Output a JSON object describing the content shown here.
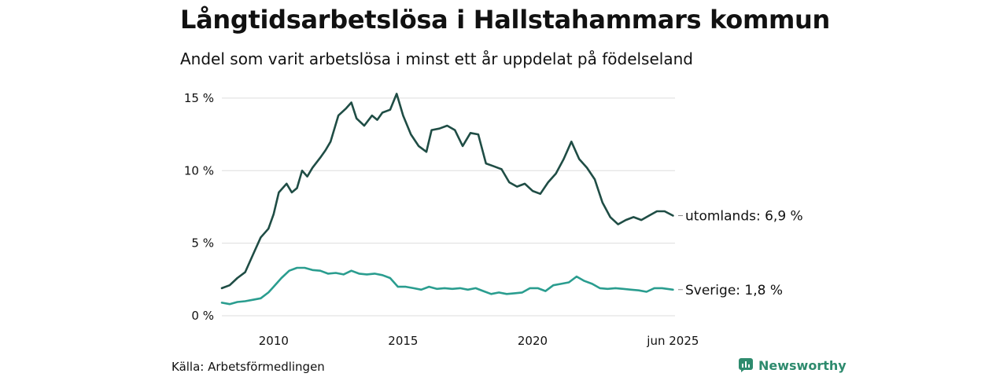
{
  "title": "Långtidsarbetslösa i Hallstahammars kommun",
  "subtitle": "Andel som varit arbetslösa i minst ett år uppdelat på födelseland",
  "source": "Källa: Arbetsförmedlingen",
  "brand": "Newsworthy",
  "colors": {
    "utomlands": "#1f4d45",
    "sverige": "#2a9d8f",
    "grid": "#dddddd",
    "text": "#111111",
    "brand": "#2e8b6e"
  },
  "chart_data": {
    "type": "line",
    "xlim": [
      2008.0,
      2025.5
    ],
    "ylim": [
      0,
      15.7
    ],
    "y_ticks": [
      0,
      5,
      10,
      15
    ],
    "y_tick_labels": [
      "0 %",
      "5 %",
      "10 %",
      "15 %"
    ],
    "x_ticks": [
      2010,
      2015,
      2020,
      2025.42
    ],
    "x_tick_labels": [
      "2010",
      "2015",
      "2020",
      "jun 2025"
    ],
    "grid": true,
    "series": [
      {
        "name": "utomlands",
        "end_label": "utomlands: 6,9 %",
        "color": "#1f4d45",
        "points": [
          [
            2008.0,
            1.9
          ],
          [
            2008.3,
            2.1
          ],
          [
            2008.6,
            2.6
          ],
          [
            2008.9,
            3.0
          ],
          [
            2009.2,
            4.2
          ],
          [
            2009.5,
            5.4
          ],
          [
            2009.8,
            6.0
          ],
          [
            2010.0,
            7.0
          ],
          [
            2010.2,
            8.5
          ],
          [
            2010.5,
            9.1
          ],
          [
            2010.7,
            8.5
          ],
          [
            2010.9,
            8.8
          ],
          [
            2011.1,
            10.0
          ],
          [
            2011.3,
            9.6
          ],
          [
            2011.5,
            10.2
          ],
          [
            2011.8,
            10.9
          ],
          [
            2012.0,
            11.4
          ],
          [
            2012.2,
            12.0
          ],
          [
            2012.5,
            13.8
          ],
          [
            2012.8,
            14.3
          ],
          [
            2013.0,
            14.7
          ],
          [
            2013.2,
            13.6
          ],
          [
            2013.5,
            13.1
          ],
          [
            2013.8,
            13.8
          ],
          [
            2014.0,
            13.5
          ],
          [
            2014.2,
            14.0
          ],
          [
            2014.5,
            14.2
          ],
          [
            2014.75,
            15.3
          ],
          [
            2015.0,
            13.8
          ],
          [
            2015.3,
            12.5
          ],
          [
            2015.6,
            11.7
          ],
          [
            2015.9,
            11.3
          ],
          [
            2016.1,
            12.8
          ],
          [
            2016.4,
            12.9
          ],
          [
            2016.7,
            13.1
          ],
          [
            2017.0,
            12.8
          ],
          [
            2017.3,
            11.7
          ],
          [
            2017.6,
            12.6
          ],
          [
            2017.9,
            12.5
          ],
          [
            2018.2,
            10.5
          ],
          [
            2018.5,
            10.3
          ],
          [
            2018.8,
            10.1
          ],
          [
            2019.1,
            9.2
          ],
          [
            2019.4,
            8.9
          ],
          [
            2019.7,
            9.1
          ],
          [
            2020.0,
            8.6
          ],
          [
            2020.3,
            8.4
          ],
          [
            2020.6,
            9.2
          ],
          [
            2020.9,
            9.8
          ],
          [
            2021.2,
            10.8
          ],
          [
            2021.5,
            12.0
          ],
          [
            2021.8,
            10.8
          ],
          [
            2022.1,
            10.2
          ],
          [
            2022.4,
            9.4
          ],
          [
            2022.7,
            7.8
          ],
          [
            2023.0,
            6.8
          ],
          [
            2023.3,
            6.3
          ],
          [
            2023.6,
            6.6
          ],
          [
            2023.9,
            6.8
          ],
          [
            2024.2,
            6.6
          ],
          [
            2024.5,
            6.9
          ],
          [
            2024.8,
            7.2
          ],
          [
            2025.1,
            7.2
          ],
          [
            2025.42,
            6.9
          ]
        ]
      },
      {
        "name": "Sverige",
        "end_label": "Sverige: 1,8 %",
        "color": "#2a9d8f",
        "points": [
          [
            2008.0,
            0.9
          ],
          [
            2008.3,
            0.8
          ],
          [
            2008.6,
            0.95
          ],
          [
            2008.9,
            1.0
          ],
          [
            2009.2,
            1.1
          ],
          [
            2009.5,
            1.2
          ],
          [
            2009.8,
            1.6
          ],
          [
            2010.0,
            2.0
          ],
          [
            2010.3,
            2.6
          ],
          [
            2010.6,
            3.1
          ],
          [
            2010.9,
            3.3
          ],
          [
            2011.2,
            3.3
          ],
          [
            2011.5,
            3.15
          ],
          [
            2011.8,
            3.1
          ],
          [
            2012.1,
            2.9
          ],
          [
            2012.4,
            2.95
          ],
          [
            2012.7,
            2.85
          ],
          [
            2013.0,
            3.1
          ],
          [
            2013.3,
            2.9
          ],
          [
            2013.6,
            2.85
          ],
          [
            2013.9,
            2.9
          ],
          [
            2014.2,
            2.8
          ],
          [
            2014.5,
            2.6
          ],
          [
            2014.8,
            2.0
          ],
          [
            2015.1,
            2.0
          ],
          [
            2015.4,
            1.9
          ],
          [
            2015.7,
            1.8
          ],
          [
            2016.0,
            2.0
          ],
          [
            2016.3,
            1.85
          ],
          [
            2016.6,
            1.9
          ],
          [
            2016.9,
            1.85
          ],
          [
            2017.2,
            1.9
          ],
          [
            2017.5,
            1.8
          ],
          [
            2017.8,
            1.9
          ],
          [
            2018.1,
            1.7
          ],
          [
            2018.4,
            1.5
          ],
          [
            2018.7,
            1.6
          ],
          [
            2019.0,
            1.5
          ],
          [
            2019.3,
            1.55
          ],
          [
            2019.6,
            1.6
          ],
          [
            2019.9,
            1.9
          ],
          [
            2020.2,
            1.9
          ],
          [
            2020.5,
            1.7
          ],
          [
            2020.8,
            2.1
          ],
          [
            2021.1,
            2.2
          ],
          [
            2021.4,
            2.3
          ],
          [
            2021.7,
            2.7
          ],
          [
            2022.0,
            2.4
          ],
          [
            2022.3,
            2.2
          ],
          [
            2022.6,
            1.9
          ],
          [
            2022.9,
            1.85
          ],
          [
            2023.2,
            1.9
          ],
          [
            2023.5,
            1.85
          ],
          [
            2023.8,
            1.8
          ],
          [
            2024.1,
            1.75
          ],
          [
            2024.4,
            1.65
          ],
          [
            2024.7,
            1.9
          ],
          [
            2025.0,
            1.9
          ],
          [
            2025.42,
            1.8
          ]
        ]
      }
    ]
  }
}
